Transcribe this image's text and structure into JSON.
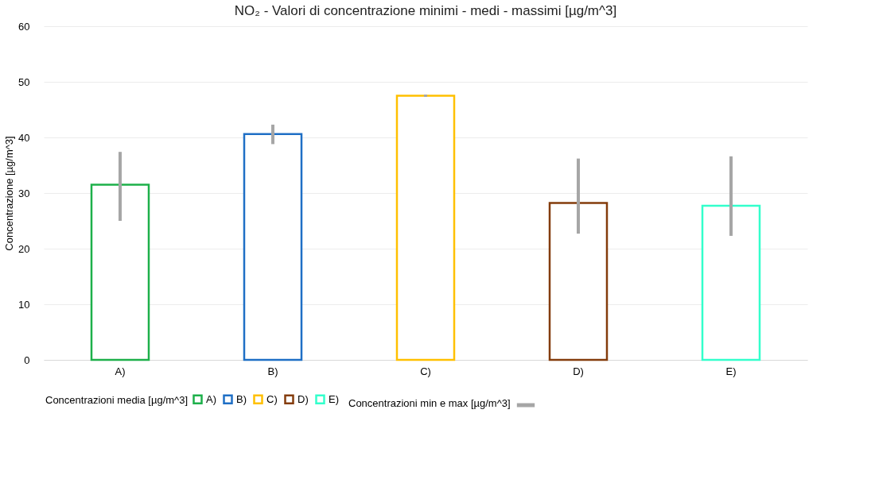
{
  "chart_data": {
    "type": "bar",
    "title": "NO₂ - Valori di concentrazione minimi - medi - massimi [µg/m^3]",
    "ylabel": "Concentrazione  [µg/m^3]",
    "legend_title": "Concentrazioni media [µg/m^3]",
    "annotations": [
      "Concentrazioni min e max [µg/m^3]"
    ],
    "categories": [
      "A)",
      "B)",
      "C)",
      "D)",
      "E)"
    ],
    "stacked": true,
    "series": [
      {
        "name": "A)",
        "color": "#1db04a",
        "values": [
          31.5,
          null,
          null,
          null,
          null
        ],
        "errors": [
          [
            25.0,
            37.4
          ],
          null,
          null,
          null,
          null
        ]
      },
      {
        "name": "B)",
        "color": "#1f6fc5",
        "values": [
          null,
          40.6,
          null,
          null,
          null
        ],
        "errors": [
          null,
          [
            38.8,
            42.3
          ],
          null,
          null,
          null
        ]
      },
      {
        "name": "C)",
        "color": "#ffc000",
        "values": [
          null,
          null,
          47.5,
          null,
          null
        ],
        "errors": [
          null,
          null,
          [
            47.3,
            47.7
          ],
          null,
          null
        ]
      },
      {
        "name": "D)",
        "color": "#843c0c",
        "values": [
          null,
          null,
          null,
          28.2,
          null
        ],
        "errors": [
          null,
          null,
          null,
          [
            22.7,
            36.2
          ],
          null
        ]
      },
      {
        "name": "E)",
        "color": "#33ffcc",
        "values": [
          null,
          null,
          null,
          null,
          27.7
        ],
        "errors": [
          null,
          null,
          null,
          null,
          [
            22.3,
            36.6
          ]
        ]
      }
    ],
    "ylim": [
      0,
      60
    ],
    "yticks": [
      0,
      10,
      20,
      30,
      40,
      50,
      60
    ],
    "grid": "y",
    "legend": "bottom"
  }
}
